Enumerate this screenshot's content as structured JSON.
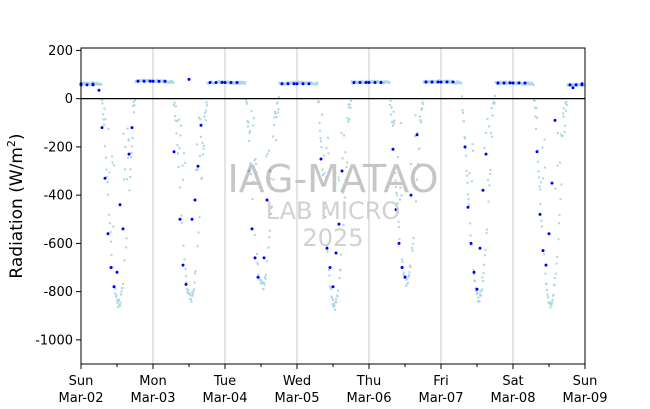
{
  "chart_data": {
    "type": "scatter",
    "ylabel_main": "Radiation (W/m",
    "ylabel_sup": "2",
    "ylabel_close": ")",
    "ylim": [
      -1100,
      210
    ],
    "xlim": [
      "2025-03-02T00:00",
      "2025-03-09T00:00"
    ],
    "yticks": [
      -1000,
      -800,
      -600,
      -400,
      -200,
      0,
      200
    ],
    "xticks": [
      {
        "day": "Sun",
        "date": "Mar-02",
        "at": "2025-03-02T00:00"
      },
      {
        "day": "Mon",
        "date": "Mar-03",
        "at": "2025-03-03T00:00"
      },
      {
        "day": "Tue",
        "date": "Mar-04",
        "at": "2025-03-04T00:00"
      },
      {
        "day": "Wed",
        "date": "Mar-05",
        "at": "2025-03-05T00:00"
      },
      {
        "day": "Thu",
        "date": "Mar-06",
        "at": "2025-03-06T00:00"
      },
      {
        "day": "Fri",
        "date": "Mar-07",
        "at": "2025-03-07T00:00"
      },
      {
        "day": "Sat",
        "date": "Mar-08",
        "at": "2025-03-08T00:00"
      },
      {
        "day": "Sun",
        "date": "Mar-09",
        "at": "2025-03-09T00:00"
      }
    ],
    "grid": "vertical lines at day boundaries",
    "zero_line": true,
    "watermark": [
      "IAG-MATAO",
      "LAB MICRO",
      "2025"
    ],
    "series": [
      {
        "style": "light blue dots (high-frequency)",
        "color": "#add8e6",
        "daily_min": [
          -850,
          -830,
          -780,
          -860,
          -760,
          -830,
          -850
        ],
        "noon_hour": 12.5,
        "night_level": [
          60,
          75,
          70,
          65,
          70,
          72,
          68,
          60
        ]
      },
      {
        "style": "blue dots (hourly)",
        "color": "#0000ff",
        "points": [
          {
            "t": "2025-03-02T00:00",
            "y": 62
          },
          {
            "t": "2025-03-02T04:00",
            "y": 60
          },
          {
            "t": "2025-03-02T06:00",
            "y": 35
          },
          {
            "t": "2025-03-02T07:00",
            "y": -120
          },
          {
            "t": "2025-03-02T08:00",
            "y": -330
          },
          {
            "t": "2025-03-02T09:00",
            "y": -560
          },
          {
            "t": "2025-03-02T10:00",
            "y": -700
          },
          {
            "t": "2025-03-02T11:00",
            "y": -780
          },
          {
            "t": "2025-03-02T12:00",
            "y": -720
          },
          {
            "t": "2025-03-02T13:00",
            "y": -440
          },
          {
            "t": "2025-03-02T14:00",
            "y": -540
          },
          {
            "t": "2025-03-02T16:00",
            "y": -230
          },
          {
            "t": "2025-03-02T17:00",
            "y": -120
          },
          {
            "t": "2025-03-03T12:00",
            "y": 80
          },
          {
            "t": "2025-03-03T07:00",
            "y": -220
          },
          {
            "t": "2025-03-03T09:00",
            "y": -500
          },
          {
            "t": "2025-03-03T10:00",
            "y": -690
          },
          {
            "t": "2025-03-03T11:00",
            "y": -770
          },
          {
            "t": "2025-03-03T13:00",
            "y": -500
          },
          {
            "t": "2025-03-03T14:00",
            "y": -420
          },
          {
            "t": "2025-03-03T15:00",
            "y": -280
          },
          {
            "t": "2025-03-03T16:00",
            "y": -110
          },
          {
            "t": "2025-03-04T08:00",
            "y": -300
          },
          {
            "t": "2025-03-04T09:00",
            "y": -540
          },
          {
            "t": "2025-03-04T10:00",
            "y": -660
          },
          {
            "t": "2025-03-04T11:00",
            "y": -740
          },
          {
            "t": "2025-03-04T13:00",
            "y": -660
          },
          {
            "t": "2025-03-04T14:00",
            "y": -420
          },
          {
            "t": "2025-03-04T15:00",
            "y": -300
          },
          {
            "t": "2025-03-05T08:00",
            "y": -250
          },
          {
            "t": "2025-03-05T10:00",
            "y": -620
          },
          {
            "t": "2025-03-05T11:00",
            "y": -700
          },
          {
            "t": "2025-03-05T12:00",
            "y": -780
          },
          {
            "t": "2025-03-05T13:00",
            "y": -640
          },
          {
            "t": "2025-03-05T14:00",
            "y": -520
          },
          {
            "t": "2025-03-05T15:00",
            "y": -300
          },
          {
            "t": "2025-03-06T08:00",
            "y": -210
          },
          {
            "t": "2025-03-06T09:00",
            "y": -460
          },
          {
            "t": "2025-03-06T10:00",
            "y": -600
          },
          {
            "t": "2025-03-06T11:00",
            "y": -700
          },
          {
            "t": "2025-03-06T12:00",
            "y": -740
          },
          {
            "t": "2025-03-06T14:00",
            "y": -400
          },
          {
            "t": "2025-03-06T16:00",
            "y": -150
          },
          {
            "t": "2025-03-07T08:00",
            "y": -200
          },
          {
            "t": "2025-03-07T09:00",
            "y": -450
          },
          {
            "t": "2025-03-07T10:00",
            "y": -600
          },
          {
            "t": "2025-03-07T11:00",
            "y": -720
          },
          {
            "t": "2025-03-07T12:00",
            "y": -790
          },
          {
            "t": "2025-03-07T13:00",
            "y": -620
          },
          {
            "t": "2025-03-07T14:00",
            "y": -380
          },
          {
            "t": "2025-03-07T15:00",
            "y": -230
          },
          {
            "t": "2025-03-08T08:00",
            "y": -220
          },
          {
            "t": "2025-03-08T09:00",
            "y": -480
          },
          {
            "t": "2025-03-08T10:00",
            "y": -630
          },
          {
            "t": "2025-03-08T11:00",
            "y": -690
          },
          {
            "t": "2025-03-08T12:00",
            "y": -560
          },
          {
            "t": "2025-03-08T13:00",
            "y": -350
          },
          {
            "t": "2025-03-08T14:00",
            "y": -90
          },
          {
            "t": "2025-03-08T20:00",
            "y": 45
          },
          {
            "t": "2025-03-08T23:00",
            "y": 62
          }
        ]
      }
    ]
  }
}
